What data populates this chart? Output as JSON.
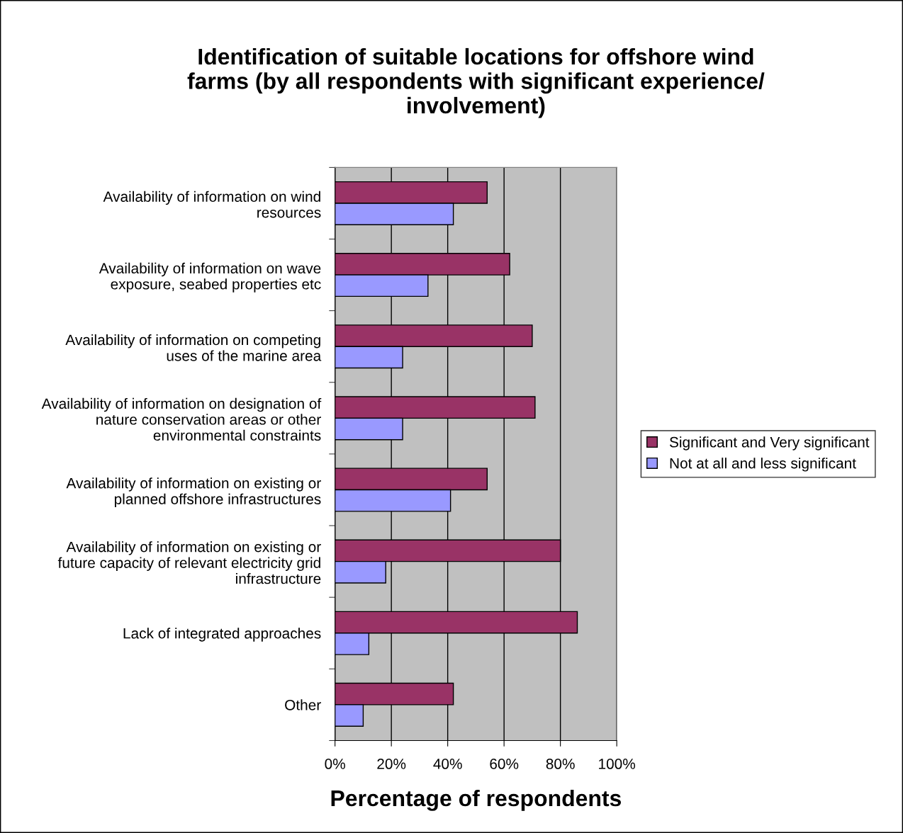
{
  "chart_data": {
    "type": "bar",
    "orientation": "horizontal",
    "title": "Identification of suitable locations for offshore wind\nfarms (by all respondents with significant experience/\ninvolvement)",
    "xlabel": "Percentage of respondents",
    "categories": [
      "Availability of information on wind\nresources",
      "Availability of information on wave\nexposure, seabed properties etc",
      "Availability of information on competing\nuses of the marine area",
      "Availability of information on designation of\nnature conservation areas or other\nenvironmental constraints",
      "Availability of information on existing or\nplanned offshore infrastructures",
      "Availability of information on existing or\nfuture capacity of relevant electricity grid\ninfrastructure",
      "Lack of integrated approaches",
      "Other"
    ],
    "series": [
      {
        "name": "Significant and Very significant",
        "color": "#993366",
        "values": [
          54,
          62,
          70,
          71,
          54,
          80,
          86,
          42
        ]
      },
      {
        "name": "Not at all and less significant",
        "color": "#9999ff",
        "values": [
          42,
          33,
          24,
          24,
          41,
          18,
          12,
          10
        ]
      }
    ],
    "xlim": [
      0,
      100
    ],
    "xticks": [
      {
        "value": 0,
        "label": "0%"
      },
      {
        "value": 20,
        "label": "20%"
      },
      {
        "value": 40,
        "label": "40%"
      },
      {
        "value": 60,
        "label": "60%"
      },
      {
        "value": 80,
        "label": "80%"
      },
      {
        "value": 100,
        "label": "100%"
      }
    ],
    "grid": "x",
    "legend": "right"
  }
}
